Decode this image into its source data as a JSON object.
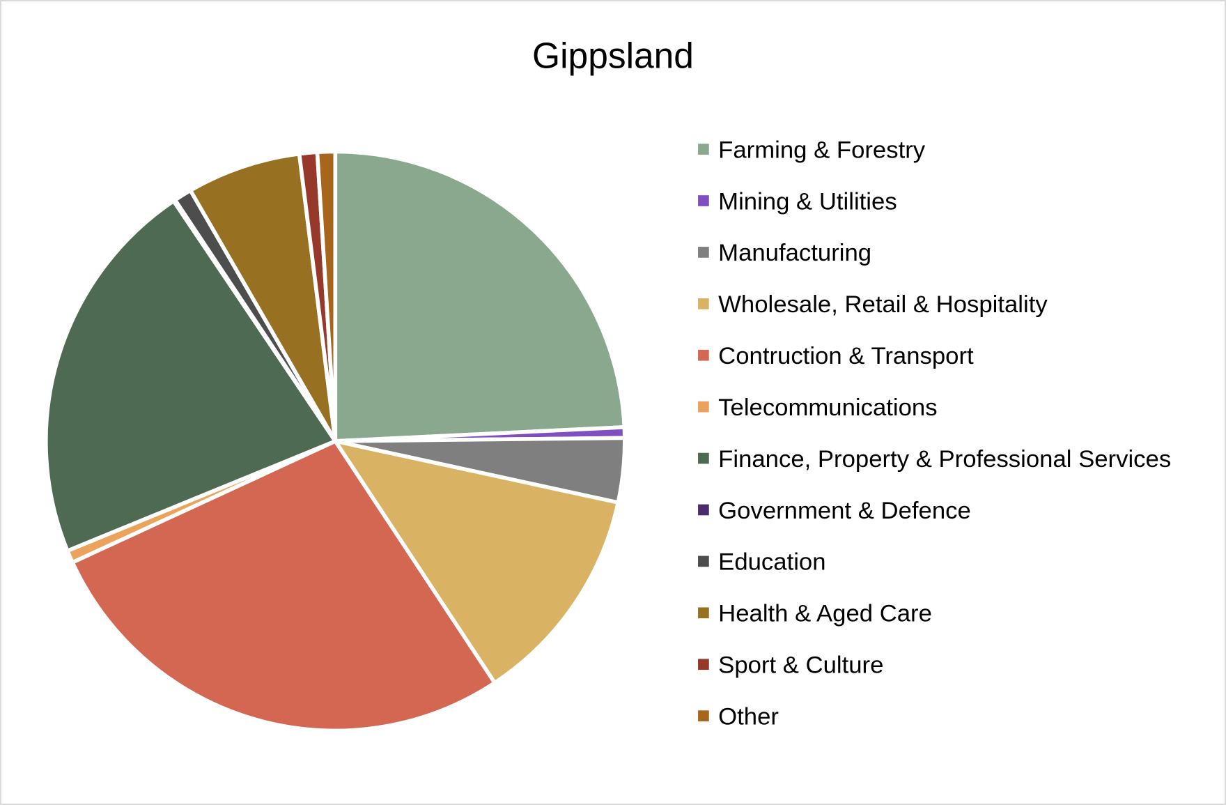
{
  "chart_data": {
    "type": "pie",
    "title": "Gippsland",
    "legend_position": "right",
    "start_angle_deg": 0,
    "direction": "clockwise",
    "slices": [
      {
        "label": "Farming & Forestry",
        "value": 24.4,
        "color": "#8aa88e"
      },
      {
        "label": "Mining & Utilities",
        "value": 0.6,
        "color": "#7f4fc0"
      },
      {
        "label": "Manufacturing",
        "value": 3.6,
        "color": "#7f7f7f"
      },
      {
        "label": "Wholesale, Retail & Hospitality",
        "value": 12.4,
        "color": "#dab264"
      },
      {
        "label": "Contruction & Transport",
        "value": 27.6,
        "color": "#d46752"
      },
      {
        "label": "Telecommunications",
        "value": 0.7,
        "color": "#eba25a"
      },
      {
        "label": "Finance, Property & Professional Services",
        "value": 21.9,
        "color": "#4e6a52"
      },
      {
        "label": "Government & Defence",
        "value": 0.1,
        "color": "#4b2d6e"
      },
      {
        "label": "Education",
        "value": 1.0,
        "color": "#4d4d4d"
      },
      {
        "label": "Health & Aged Care",
        "value": 6.4,
        "color": "#987022"
      },
      {
        "label": "Sport & Culture",
        "value": 1.0,
        "color": "#96382a"
      },
      {
        "label": "Other",
        "value": 1.0,
        "color": "#a8661c"
      }
    ]
  }
}
